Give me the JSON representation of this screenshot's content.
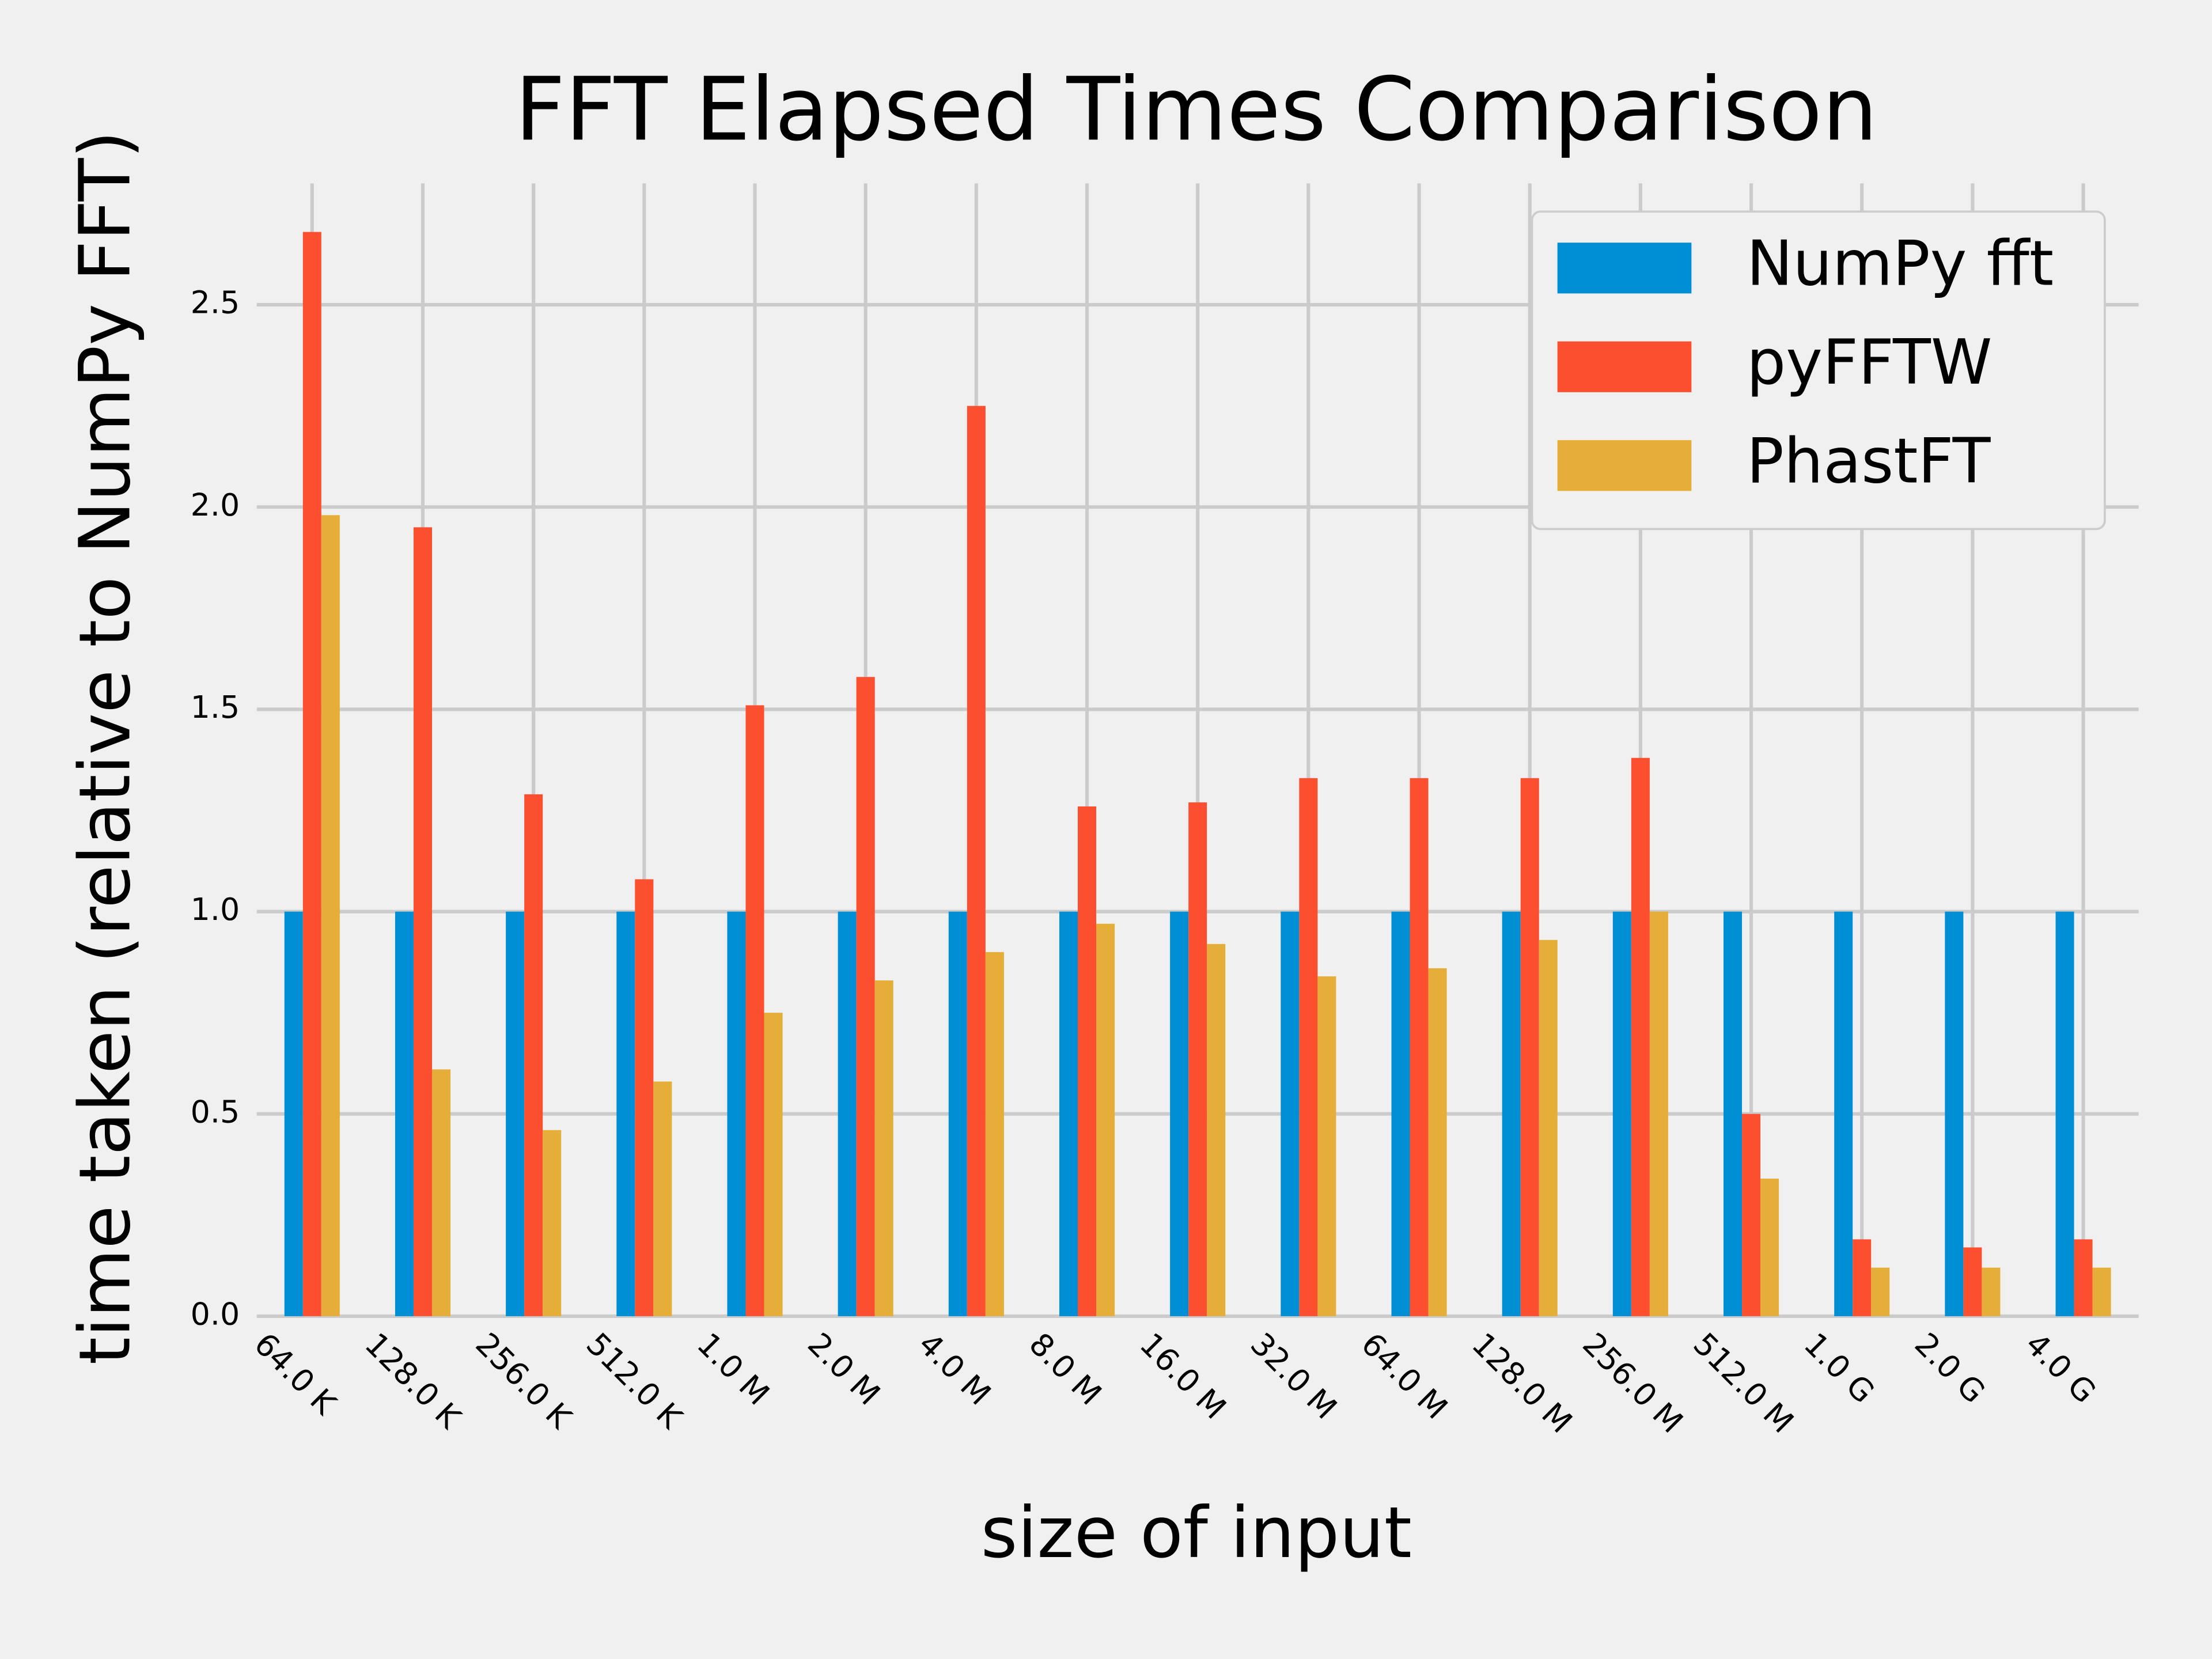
{
  "chart_data": {
    "type": "bar",
    "title": "FFT Elapsed Times Comparison",
    "xlabel": "size of input",
    "ylabel": "time taken (relative to NumPy FFT)",
    "categories": [
      "64.0 K",
      "128.0 K",
      "256.0 K",
      "512.0 K",
      "1.0 M",
      "2.0 M",
      "4.0 M",
      "8.0 M",
      "16.0 M",
      "32.0 M",
      "64.0 M",
      "128.0 M",
      "256.0 M",
      "512.0 M",
      "1.0 G",
      "2.0 G",
      "4.0 G"
    ],
    "series": [
      {
        "name": "NumPy fft",
        "color": "#008fd5",
        "values": [
          1,
          1,
          1,
          1,
          1,
          1,
          1,
          1,
          1,
          1,
          1,
          1,
          1,
          1,
          1,
          1,
          1
        ]
      },
      {
        "name": "pyFFTW",
        "color": "#fc4f30",
        "values": [
          2.68,
          1.95,
          1.29,
          1.08,
          1.51,
          1.58,
          2.25,
          1.26,
          1.27,
          1.33,
          1.33,
          1.33,
          1.38,
          0.5,
          0.19,
          0.17,
          0.19
        ]
      },
      {
        "name": "PhastFT",
        "color": "#e5ae38",
        "values": [
          1.98,
          0.61,
          0.46,
          0.58,
          0.75,
          0.83,
          0.9,
          0.97,
          0.92,
          0.84,
          0.86,
          0.93,
          1.0,
          0.34,
          0.12,
          0.12,
          0.12
        ]
      }
    ],
    "ylim": [
      0,
      2.8
    ],
    "yticks": [
      {
        "value": 0,
        "label": "0.0"
      },
      0.5,
      {
        "value": 1,
        "label": "1.0"
      },
      1.5,
      {
        "value": 2,
        "label": "2.0"
      },
      2.5
    ],
    "grid": true,
    "legend": "upper right"
  }
}
